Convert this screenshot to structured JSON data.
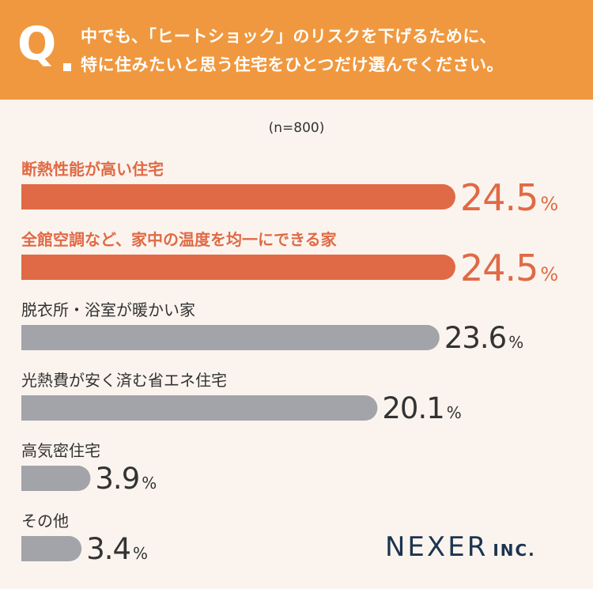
{
  "question": {
    "mark": "Q",
    "line1": "中でも、「ヒートショック」のリスクを下げるために、",
    "line2": "特に住みたいと思う住宅をひとつだけ選んでください。"
  },
  "sample_size": "(n=800)",
  "logo": {
    "name": "NEXER",
    "suffix": "INC."
  },
  "colors": {
    "header_bg": "#f0983f",
    "highlight": "#e06a45",
    "neutral": "#a3a4a9",
    "text": "#333333",
    "background": "#fbf4ee",
    "logo": "#1b3450"
  },
  "chart_data": {
    "type": "bar",
    "orientation": "horizontal",
    "unit": "%",
    "xlim": [
      0,
      24.5
    ],
    "categories": [
      "断熱性能が高い住宅",
      "全館空調など、家中の温度を均一にできる家",
      "脱衣所・浴室が暖かい家",
      "光熱費が安く済む省エネ住宅",
      "高気密住宅",
      "その他"
    ],
    "values": [
      24.5,
      24.5,
      23.6,
      20.1,
      3.9,
      3.4
    ],
    "highlighted": [
      true,
      true,
      false,
      false,
      false,
      false
    ]
  }
}
